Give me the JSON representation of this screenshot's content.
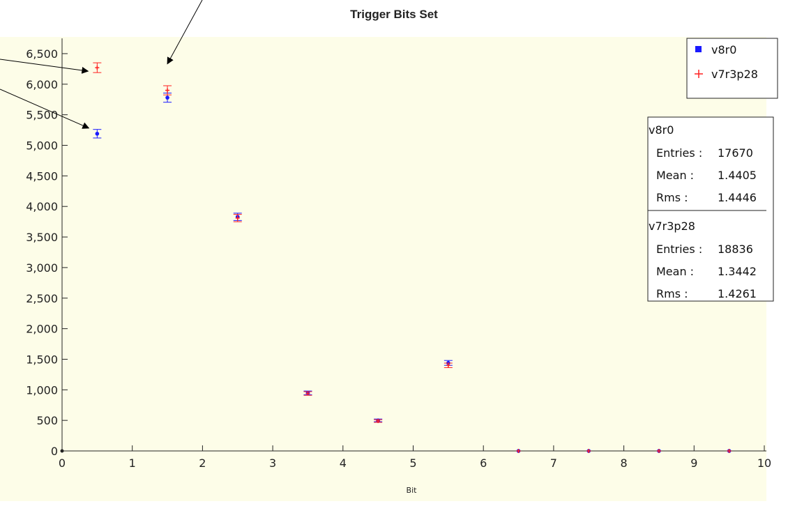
{
  "chart_data": {
    "type": "scatter",
    "title": "Trigger Bits Set",
    "xlabel": "Bit",
    "ylabel": "",
    "xlim": [
      0,
      10
    ],
    "ylim": [
      0,
      6750
    ],
    "x_ticks": [
      "0",
      "1",
      "2",
      "3",
      "4",
      "5",
      "6",
      "7",
      "8",
      "9",
      "10"
    ],
    "y_ticks": [
      "0",
      "500",
      "1,000",
      "1,500",
      "2,000",
      "2,500",
      "3,000",
      "3,500",
      "4,000",
      "4,500",
      "5,000",
      "5,500",
      "6,000",
      "6,500"
    ],
    "grid": false,
    "background": "#fdfde8",
    "legend_position": "top-right",
    "series": [
      {
        "name": "v8r0",
        "color": "#1a1aff",
        "marker": "dot",
        "x": [
          0.5,
          1.5,
          2.5,
          3.5,
          4.5,
          5.5,
          6.5,
          7.5,
          8.5,
          9.5
        ],
        "y": [
          5190,
          5780,
          3830,
          950,
          500,
          1440,
          0,
          0,
          0,
          0
        ],
        "err": [
          70,
          75,
          60,
          30,
          22,
          40,
          0,
          0,
          0,
          0
        ]
      },
      {
        "name": "v7r3p28",
        "color": "#ff2020",
        "marker": "cross",
        "x": [
          0.5,
          1.5,
          2.5,
          3.5,
          4.5,
          5.5,
          6.5,
          7.5,
          8.5,
          9.5
        ],
        "y": [
          6270,
          5900,
          3810,
          940,
          490,
          1400,
          0,
          0,
          0,
          0
        ],
        "err": [
          80,
          75,
          60,
          30,
          22,
          37,
          0,
          0,
          0,
          0
        ]
      }
    ],
    "stats": [
      {
        "name": "v8r0",
        "entries_label": "Entries :",
        "entries": "17670",
        "mean_label": "Mean :",
        "mean": "1.4405",
        "rms_label": "Rms :",
        "rms": "1.4446"
      },
      {
        "name": "v7r3p28",
        "entries_label": "Entries :",
        "entries": "18836",
        "mean_label": "Mean :",
        "mean": "1.3442",
        "rms_label": "Rms :",
        "rms": "1.4261"
      }
    ],
    "annotations": [
      {
        "type": "arrow",
        "target_series": "v7r3p28",
        "target_x": 1.5
      },
      {
        "type": "arrow",
        "target_series": "v7r3p28",
        "target_x": 0.5
      },
      {
        "type": "arrow",
        "target_series": "v8r0",
        "target_x": 0.5
      }
    ]
  }
}
